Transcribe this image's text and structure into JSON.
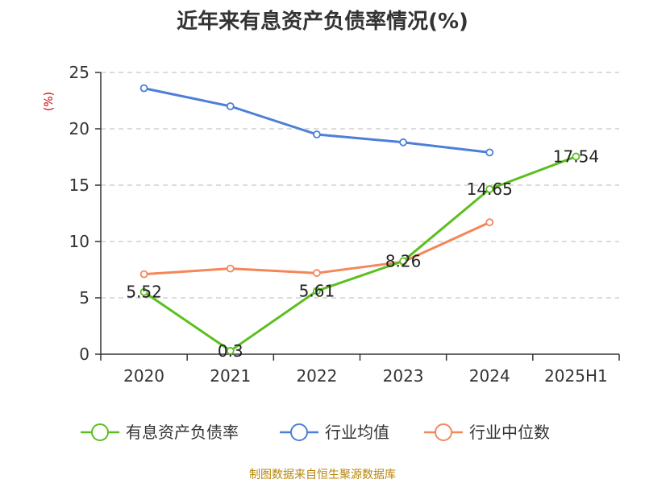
{
  "chart_data": {
    "type": "line",
    "title": "近年来有息资产负债率情况(%)",
    "ylabel": "(%)",
    "xlabel": "",
    "categories": [
      "2020",
      "2021",
      "2022",
      "2023",
      "2024",
      "2025H1"
    ],
    "ylim": [
      0,
      25
    ],
    "yticks": [
      0,
      5,
      10,
      15,
      20,
      25
    ],
    "grid": true,
    "legend_position": "bottom",
    "series": [
      {
        "name": "有息资产负债率",
        "color": "#5cbf1f",
        "values": [
          5.52,
          0.3,
          5.61,
          8.26,
          14.65,
          17.54
        ],
        "labels": [
          "5.52",
          "0.3",
          "5.61",
          "8.26",
          "14.65",
          "17.54"
        ]
      },
      {
        "name": "行业均值",
        "color": "#4d7fd9",
        "values": [
          23.6,
          22.0,
          19.5,
          18.8,
          17.9,
          null
        ]
      },
      {
        "name": "行业中位数",
        "color": "#f4875a",
        "values": [
          7.1,
          7.6,
          7.2,
          8.2,
          11.7,
          null
        ]
      }
    ]
  },
  "source_text": "制图数据来自恒生聚源数据库"
}
